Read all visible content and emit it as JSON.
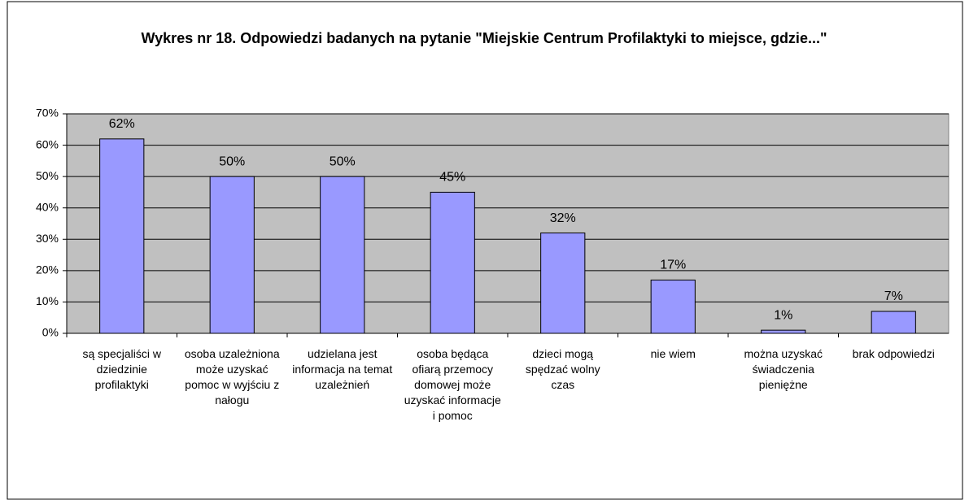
{
  "chart_data": {
    "type": "bar",
    "title": "Wykres nr 18. Odpowiedzi badanych na pytanie \"Miejskie Centrum Profilaktyki to miejsce, gdzie...\"",
    "categories": [
      "są specjaliści w dziedzinie profilaktyki",
      "osoba uzależniona może uzyskać pomoc w wyjściu z nałogu",
      "udzielana jest informacja na temat uzależnień",
      "osoba będąca ofiarą przemocy domowej może uzyskać informacje i pomoc",
      "dzieci mogą spędzać wolny czas",
      "nie wiem",
      "można uzyskać świadczenia pieniężne",
      "brak odpowiedzi"
    ],
    "values": [
      62,
      50,
      50,
      45,
      32,
      17,
      1,
      7
    ],
    "value_labels": [
      "62%",
      "50%",
      "50%",
      "45%",
      "32%",
      "17%",
      "1%",
      "7%"
    ],
    "color": "#9999ff",
    "ylim": [
      0,
      70
    ],
    "yticks": [
      {
        "value": 0,
        "label": "0%"
      },
      {
        "value": 10,
        "label": "10%"
      },
      {
        "value": 20,
        "label": "20%"
      },
      {
        "value": 30,
        "label": "30%"
      },
      {
        "value": 40,
        "label": "40%"
      },
      {
        "value": 50,
        "label": "50%"
      },
      {
        "value": 60,
        "label": "60%"
      },
      {
        "value": 70,
        "label": "70%"
      }
    ],
    "grid": true
  }
}
